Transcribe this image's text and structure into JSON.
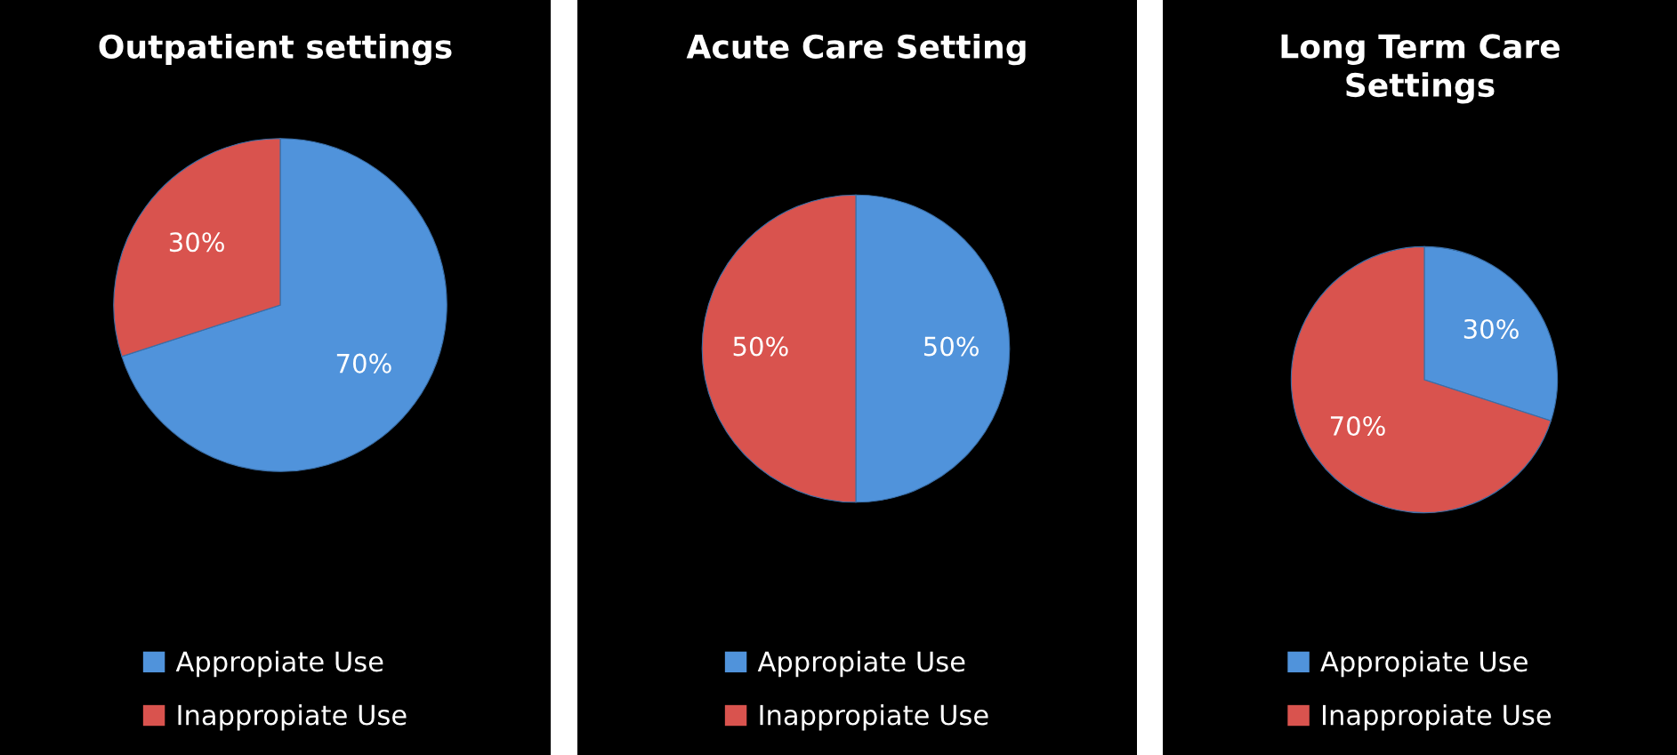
{
  "chart_data": [
    {
      "type": "pie",
      "title": "Outpatient settings",
      "categories": [
        "Appropiate Use",
        "Inappropiate Use"
      ],
      "values": [
        70,
        30
      ],
      "colors": [
        "#5093db",
        "#d9534e"
      ],
      "value_labels": [
        "70%",
        "30%"
      ],
      "legend": "bottom"
    },
    {
      "type": "pie",
      "title": "Acute Care Setting",
      "categories": [
        "Appropiate Use",
        "Inappropiate Use"
      ],
      "values": [
        50,
        50
      ],
      "colors": [
        "#5093db",
        "#d9534e"
      ],
      "value_labels": [
        "50%",
        "50%"
      ],
      "legend": "bottom"
    },
    {
      "type": "pie",
      "title": "Long Term Care Settings",
      "categories": [
        "Appropiate Use",
        "Inappropiate Use"
      ],
      "values": [
        30,
        70
      ],
      "colors": [
        "#5093db",
        "#d9534e"
      ],
      "value_labels": [
        "30%",
        "70%"
      ],
      "legend": "bottom"
    }
  ]
}
